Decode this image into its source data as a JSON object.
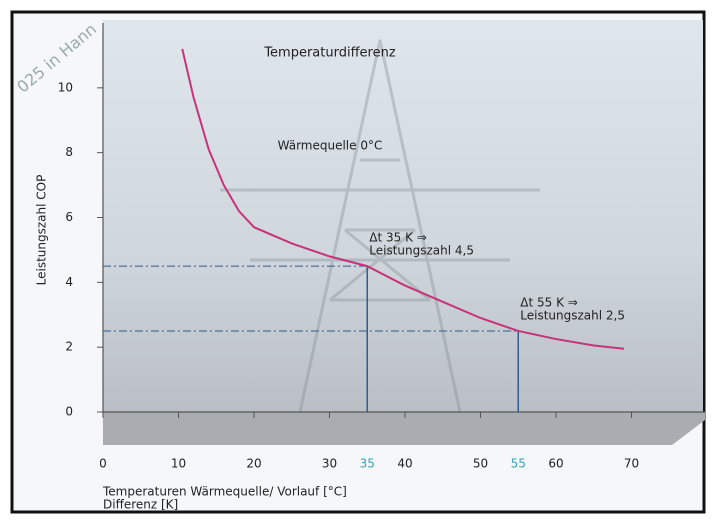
{
  "chart_data": {
    "type": "line",
    "title": "Temperaturdifferenz",
    "subtitle": "Wärmequelle 0°C",
    "watermark": "025 in Hann",
    "ylabel": "Leistungszahl COP",
    "xlabel": [
      "Temperaturen Wärmequelle/ Vorlauf [°C]",
      "Differenz [K]"
    ],
    "xlim": [
      0,
      80
    ],
    "xticks": [
      0,
      10,
      20,
      30,
      40,
      50,
      60,
      70
    ],
    "ylim": [
      0,
      12
    ],
    "yticks": [
      0,
      2,
      4,
      6,
      8,
      10
    ],
    "series": [
      {
        "name": "Wärmequelle 0°C",
        "color": "#c8327a",
        "x": [
          10.5,
          12,
          14,
          16,
          18,
          20,
          25,
          30,
          35,
          40,
          45,
          50,
          55,
          60,
          65,
          69
        ],
        "values": [
          11.2,
          9.7,
          8.1,
          7.0,
          6.2,
          5.7,
          5.2,
          4.8,
          4.5,
          3.9,
          3.4,
          2.9,
          2.5,
          2.25,
          2.05,
          1.95
        ]
      }
    ],
    "markers": [
      {
        "x": 35,
        "y": 4.5,
        "text": [
          "Δt 35 K ⇒",
          "Leistungszahl 4,5"
        ]
      },
      {
        "x": 55,
        "y": 2.5,
        "text": [
          "Δt 55 K ⇒",
          "Leistungszahl 2,5"
        ]
      }
    ],
    "marker_color": "#2f5b96",
    "highlight_tick_color": "#3aa0b8"
  }
}
